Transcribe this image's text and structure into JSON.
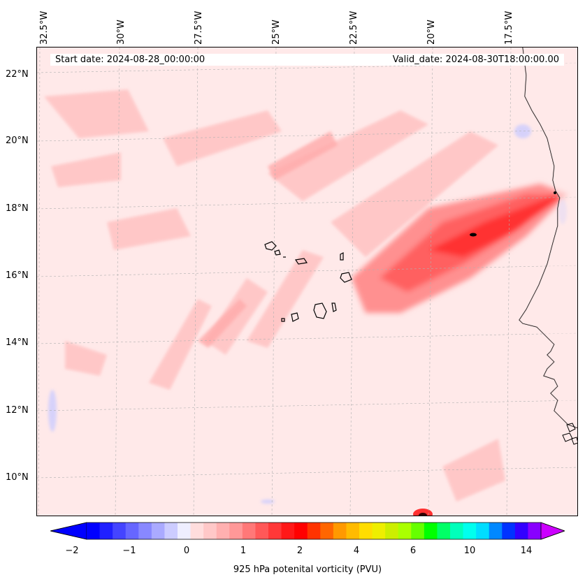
{
  "map": {
    "start_date": "Start date: 2024-08-28_00:00:00",
    "valid_date": "Valid_date: 2024-08-30T18:00:00.00",
    "longitudes": [
      "32.5°W",
      "30°W",
      "27.5°W",
      "25°W",
      "22.5°W",
      "20°W",
      "17.5°W"
    ],
    "latitudes": [
      "22°N",
      "20°N",
      "18°N",
      "16°N",
      "14°N",
      "12°N",
      "10°N"
    ],
    "colors": {
      "coast": "#000000",
      "grid": "#b0b0b0",
      "background": "#ffeded"
    }
  },
  "colorbar": {
    "label": "925 hPa potenital vorticity (PVU)",
    "ticks": [
      "−2",
      "−1",
      "0",
      "1",
      "2",
      "4",
      "6",
      "10",
      "14"
    ],
    "colors": [
      "#0000ff",
      "#2020ff",
      "#4444ff",
      "#6666ff",
      "#8888ff",
      "#aaaaff",
      "#ccccff",
      "#eeeeff",
      "#ffdddd",
      "#ffc8c8",
      "#ffb0b0",
      "#ff9898",
      "#ff7878",
      "#ff5858",
      "#ff3838",
      "#ff1818",
      "#ff0000",
      "#ff3300",
      "#ff6600",
      "#ff9900",
      "#ffbb00",
      "#ffdd00",
      "#eeee00",
      "#ccee00",
      "#aaff00",
      "#66ff00",
      "#00ff00",
      "#00ff66",
      "#00ffbb",
      "#00ffee",
      "#00ddff",
      "#0088ff",
      "#0033ff",
      "#3300ff",
      "#8800ff"
    ],
    "extend_min_color": "#0000ff",
    "extend_max_color": "#cc00ff"
  }
}
